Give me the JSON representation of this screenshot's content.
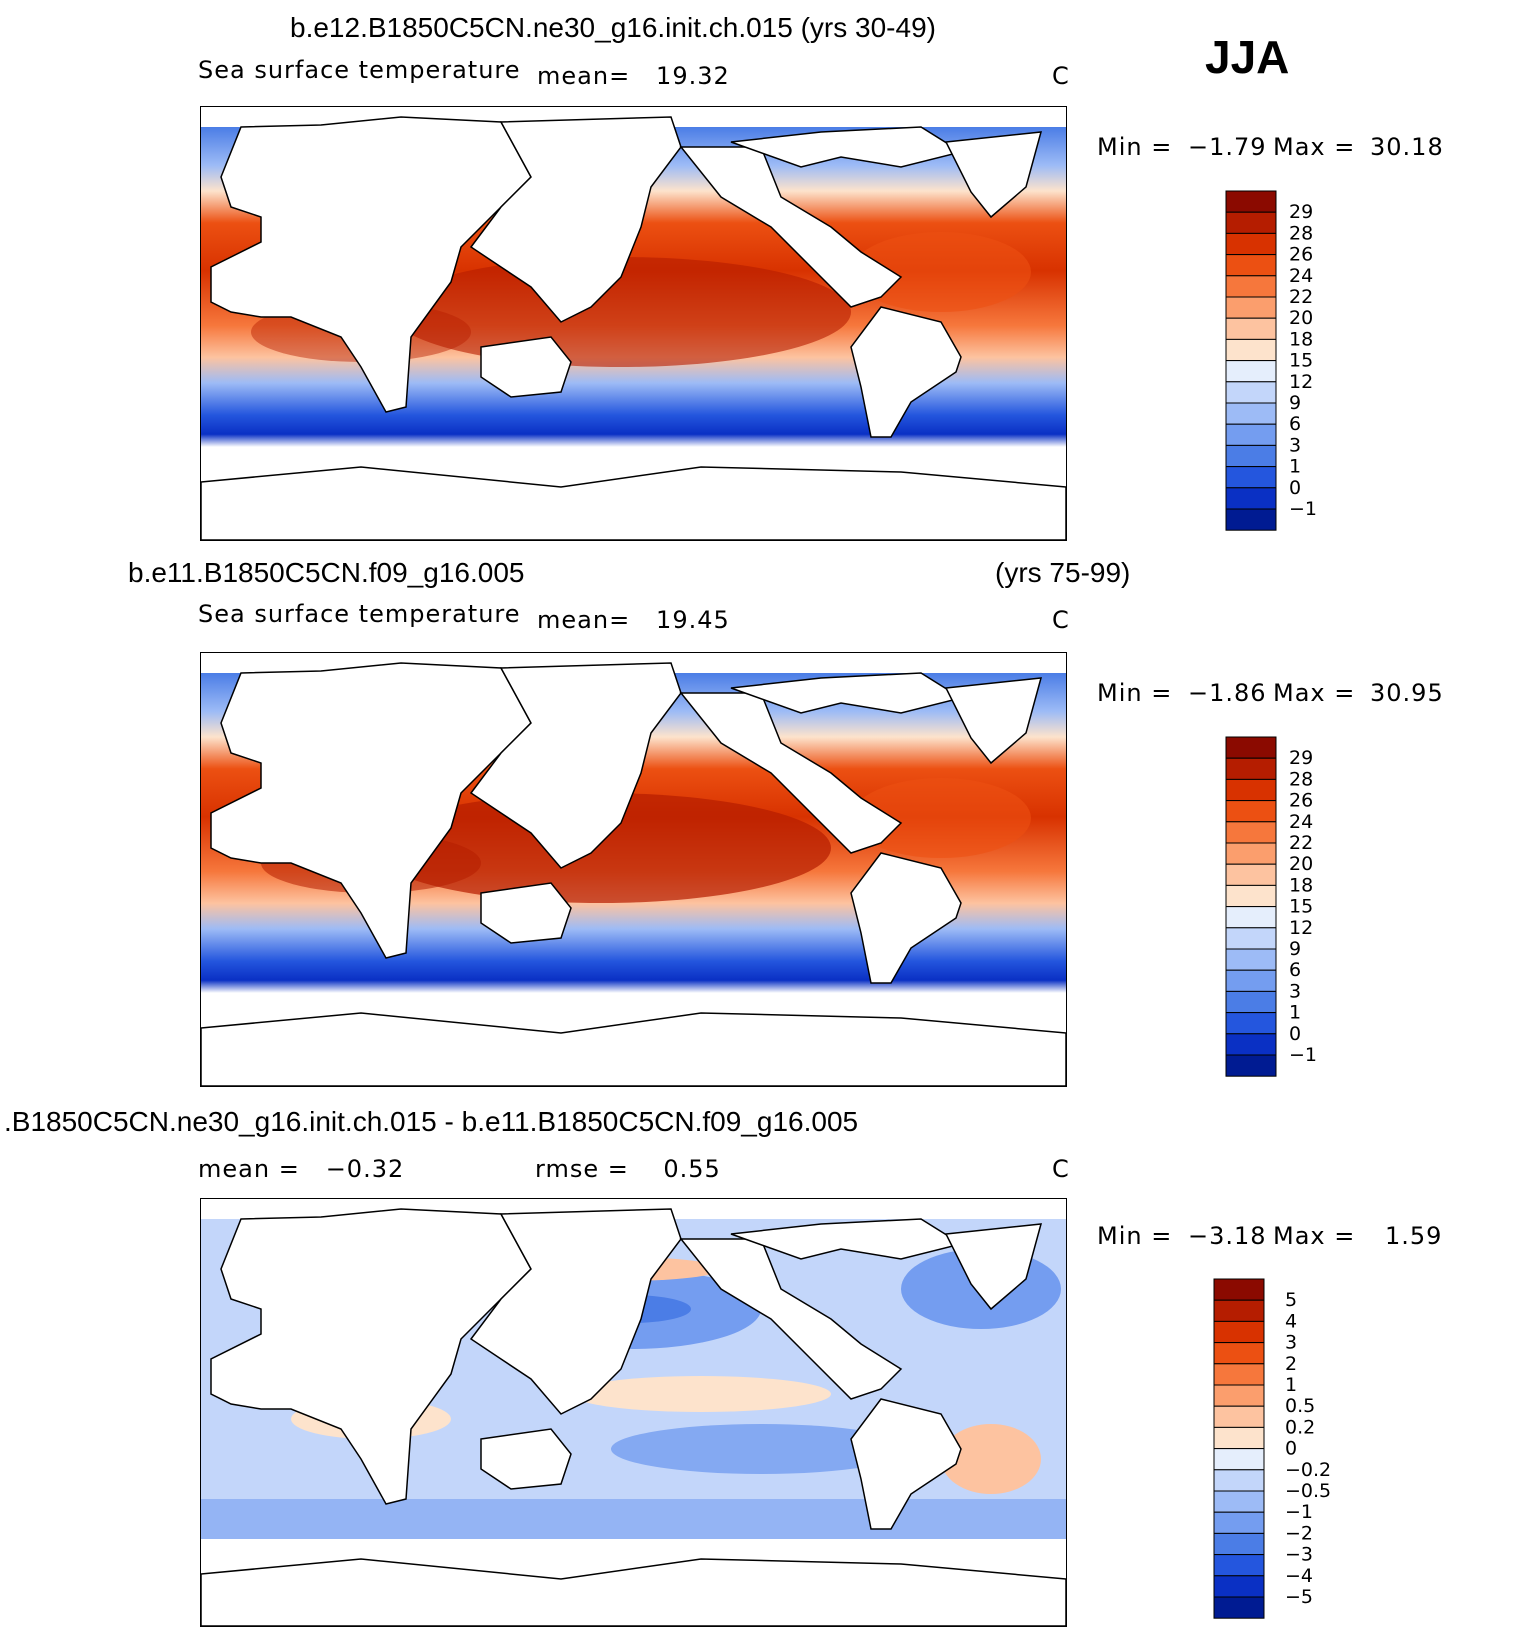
{
  "season": "JJA",
  "panels": [
    {
      "title": "b.e12.B1850C5CN.ne30_g16.init.ch.015 (yrs 30-49)",
      "title_right": "",
      "field": "Sea surface temperature",
      "mean_text": "mean=   19.32",
      "rmse_text": "",
      "units": "C",
      "min_label": "Min =",
      "min_value": "−1.79",
      "max_label": "Max =",
      "max_value": "30.18",
      "colorbar": {
        "labels": [
          "29",
          "28",
          "26",
          "24",
          "22",
          "20",
          "18",
          "15",
          "12",
          "9",
          "6",
          "3",
          "1",
          "0",
          "−1"
        ],
        "colors": [
          "#8b0a00",
          "#b51d00",
          "#d83200",
          "#ec5012",
          "#f6773c",
          "#fb9e6d",
          "#fdc3a0",
          "#fde3cc",
          "#e5eefc",
          "#c3d6fa",
          "#9dbbf6",
          "#749df0",
          "#4b7de6",
          "#2456de",
          "#0a30c4",
          "#001b92"
        ]
      }
    },
    {
      "title": "b.e11.B1850C5CN.f09_g16.005",
      "title_right": "(yrs 75-99)",
      "field": "Sea surface temperature",
      "mean_text": "mean=   19.45",
      "rmse_text": "",
      "units": "C",
      "min_label": "Min =",
      "min_value": "−1.86",
      "max_label": "Max =",
      "max_value": "30.95",
      "colorbar": {
        "labels": [
          "29",
          "28",
          "26",
          "24",
          "22",
          "20",
          "18",
          "15",
          "12",
          "9",
          "6",
          "3",
          "1",
          "0",
          "−1"
        ],
        "colors": [
          "#8b0a00",
          "#b51d00",
          "#d83200",
          "#ec5012",
          "#f6773c",
          "#fb9e6d",
          "#fdc3a0",
          "#fde3cc",
          "#e5eefc",
          "#c3d6fa",
          "#9dbbf6",
          "#749df0",
          "#4b7de6",
          "#2456de",
          "#0a30c4",
          "#001b92"
        ]
      }
    },
    {
      "title": ".B1850C5CN.ne30_g16.init.ch.015 - b.e11.B1850C5CN.f09_g16.005",
      "title_right": "",
      "field": "",
      "mean_text": "mean =   −0.32",
      "rmse_text": "rmse =    0.55",
      "units": "C",
      "min_label": "Min =",
      "min_value": "−3.18",
      "max_label": "Max =",
      "max_value": "1.59",
      "colorbar": {
        "labels": [
          "5",
          "4",
          "3",
          "2",
          "1",
          "0.5",
          "0.2",
          "0",
          "−0.2",
          "−0.5",
          "−1",
          "−2",
          "−3",
          "−4",
          "−5"
        ],
        "colors": [
          "#8b0a00",
          "#b51d00",
          "#d83200",
          "#ec5012",
          "#f6773c",
          "#fb9e6d",
          "#fdc3a0",
          "#fde3cc",
          "#e5eefc",
          "#c3d6fa",
          "#9dbbf6",
          "#749df0",
          "#4b7de6",
          "#2456de",
          "#0a30c4",
          "#001b92"
        ]
      }
    }
  ]
}
